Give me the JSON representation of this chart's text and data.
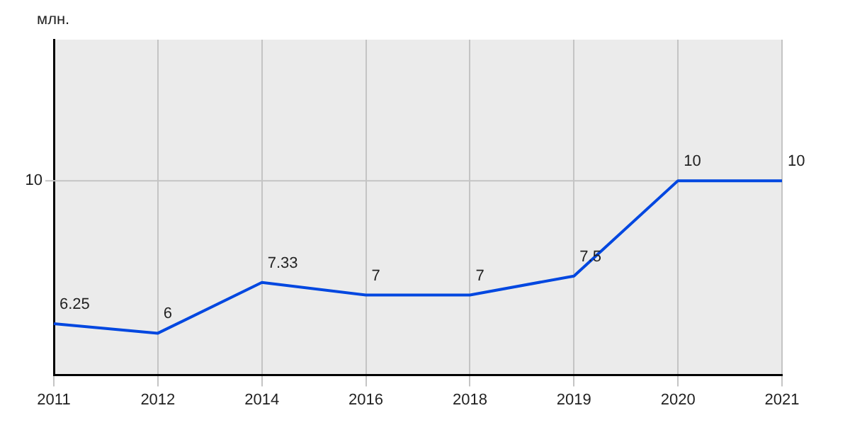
{
  "chart_data": {
    "type": "line",
    "ylabel": "млн.",
    "categories": [
      "2011",
      "2012",
      "2014",
      "2016",
      "2018",
      "2019",
      "2020",
      "2021"
    ],
    "series": [
      {
        "color": "#0047e0",
        "values": [
          6.25,
          6,
          7.33,
          7,
          7,
          7.5,
          10,
          10
        ]
      }
    ],
    "ylim": [
      4.9,
      13.7
    ],
    "ref_lines": [
      {
        "axis": "y",
        "value": 10,
        "label": "10",
        "color": "#c4c4c4"
      }
    ],
    "grid": "x",
    "legend": false,
    "marker": "none",
    "line_style": "solid",
    "data_labels": true
  }
}
